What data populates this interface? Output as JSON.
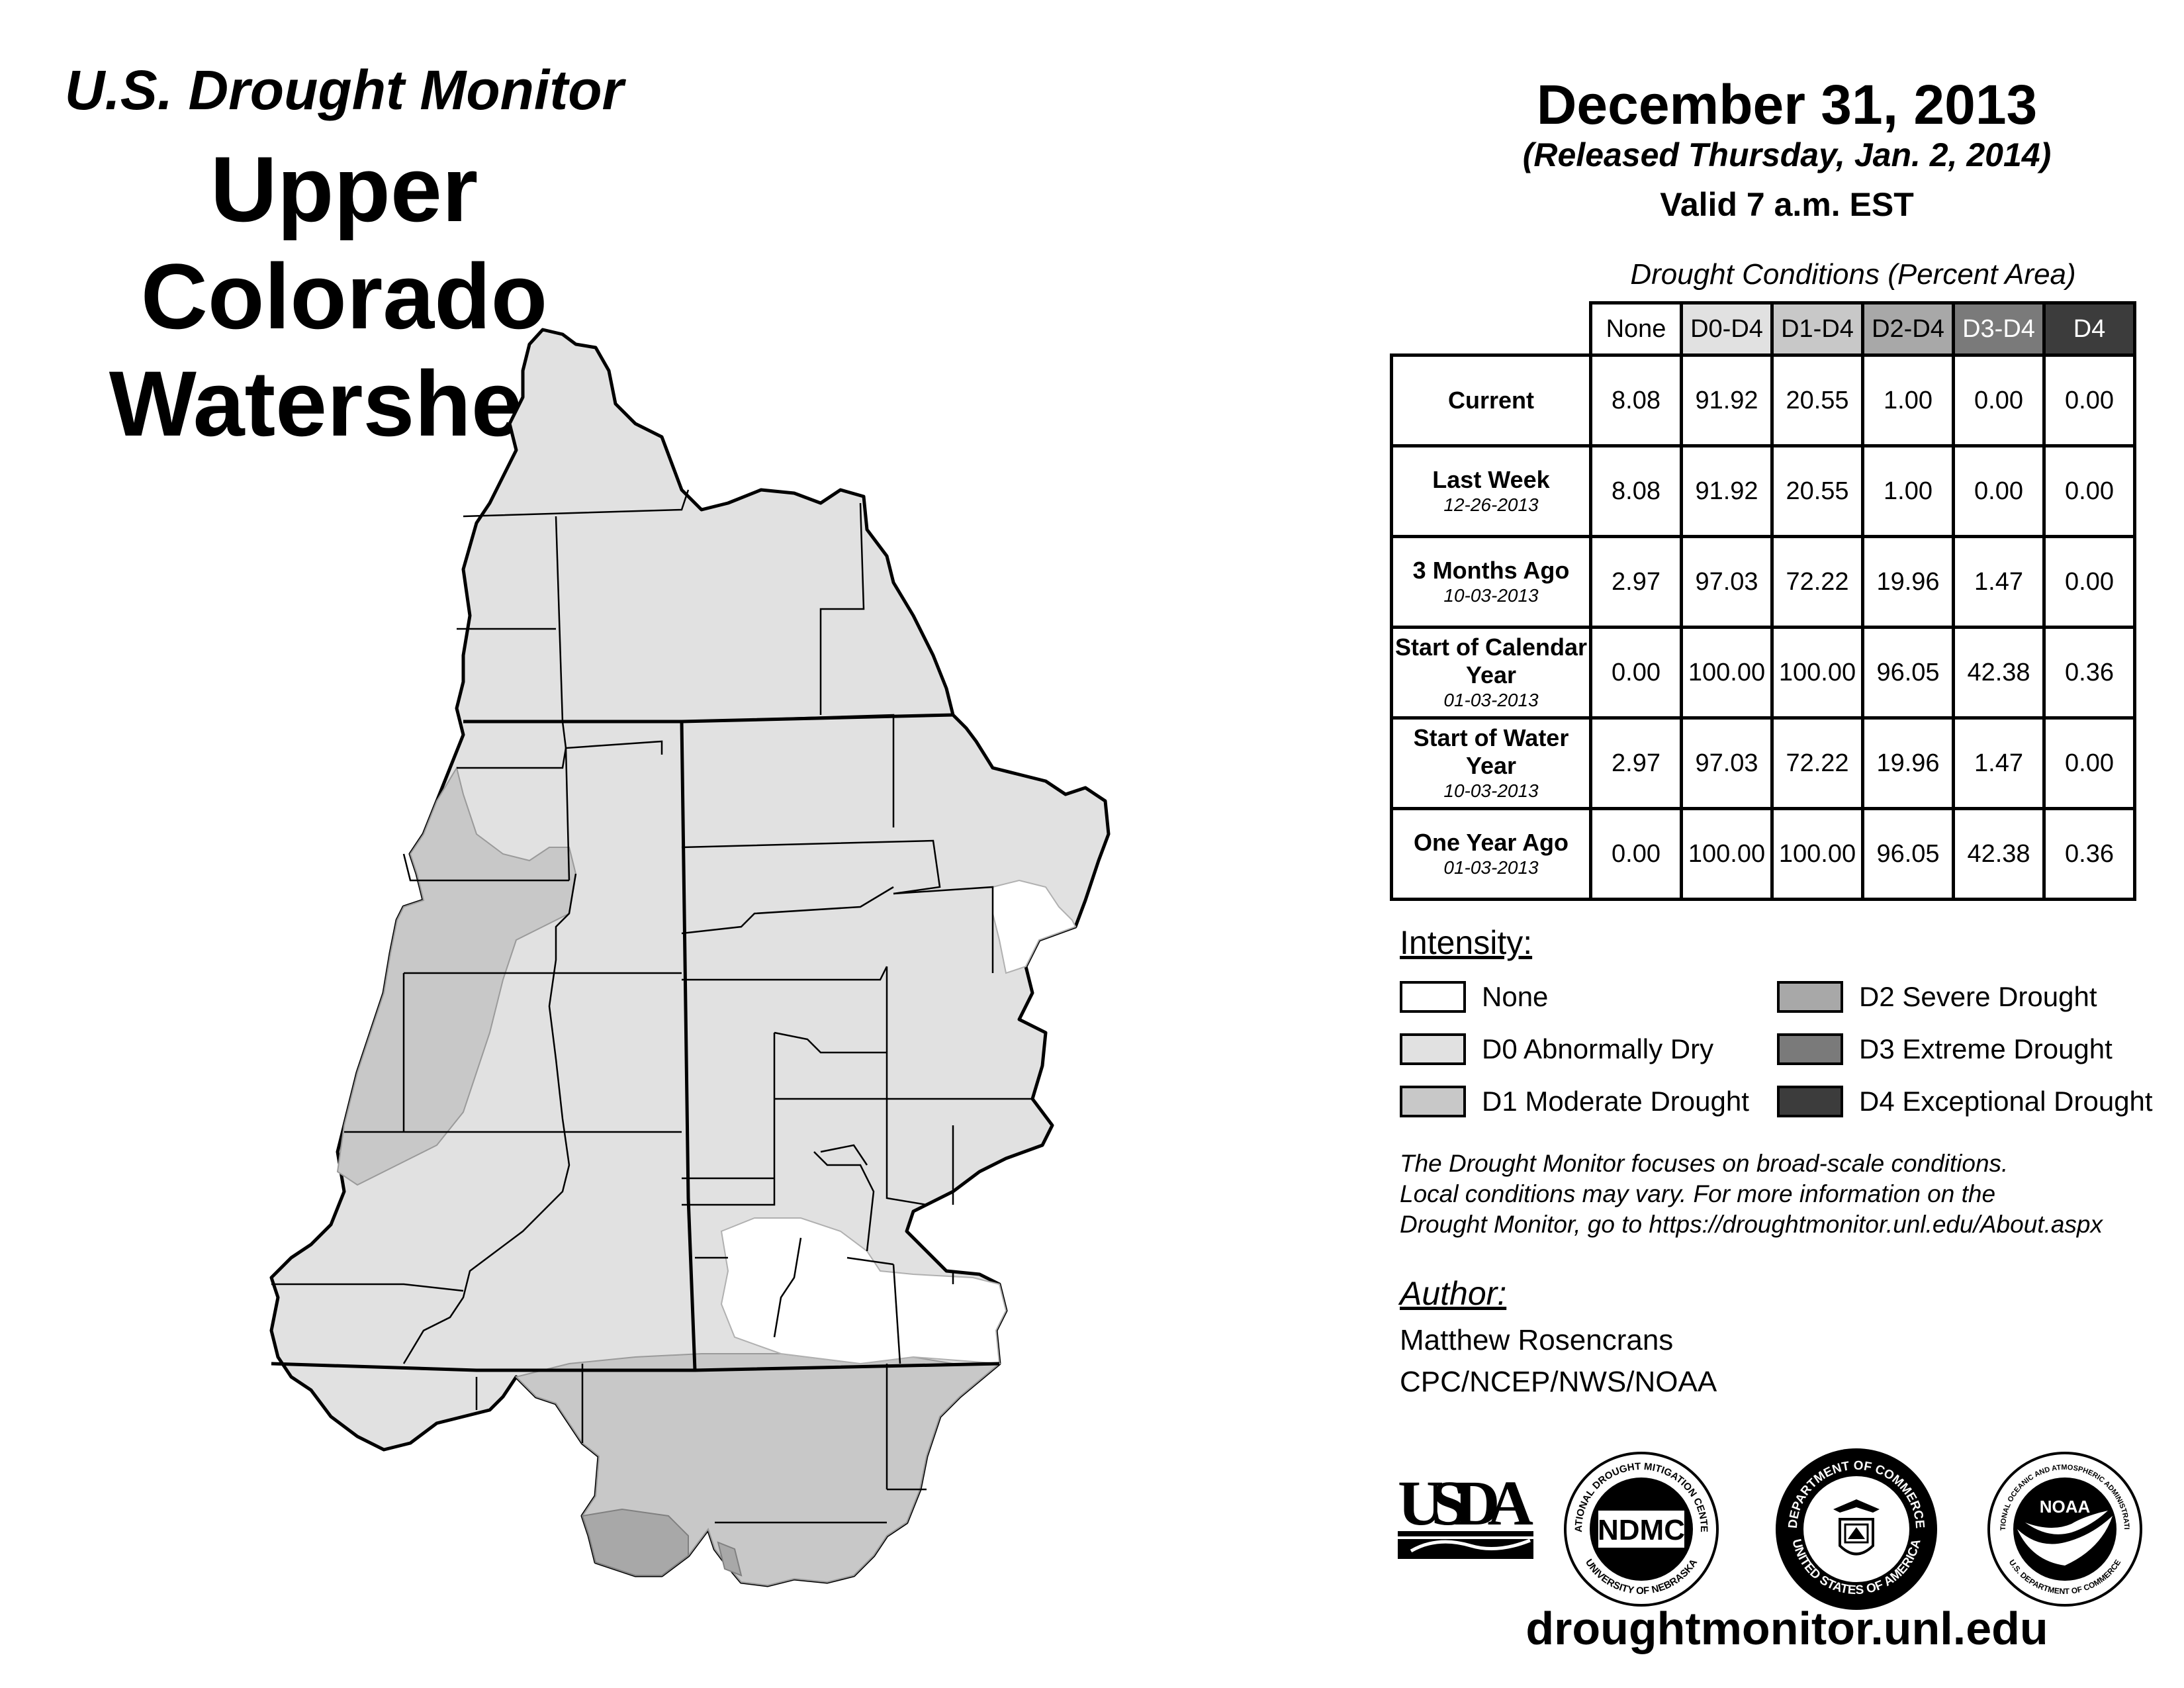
{
  "header": {
    "subtitle": "U.S. Drought Monitor",
    "title": "Upper Colorado Watershed",
    "date": "December 31, 2013",
    "released": "(Released Thursday, Jan. 2, 2014)",
    "valid": "Valid 7 a.m. EST"
  },
  "table": {
    "caption": "Drought Conditions (Percent Area)",
    "columns": [
      "None",
      "D0-D4",
      "D1-D4",
      "D2-D4",
      "D3-D4",
      "D4"
    ],
    "rows": [
      {
        "label": "Current",
        "date": "",
        "values": [
          "8.08",
          "91.92",
          "20.55",
          "1.00",
          "0.00",
          "0.00"
        ]
      },
      {
        "label": "Last Week",
        "date": "12-26-2013",
        "values": [
          "8.08",
          "91.92",
          "20.55",
          "1.00",
          "0.00",
          "0.00"
        ]
      },
      {
        "label": "3 Months Ago",
        "date": "10-03-2013",
        "values": [
          "2.97",
          "97.03",
          "72.22",
          "19.96",
          "1.47",
          "0.00"
        ]
      },
      {
        "label": "Start of Calendar Year",
        "date": "01-03-2013",
        "values": [
          "0.00",
          "100.00",
          "100.00",
          "96.05",
          "42.38",
          "0.36"
        ]
      },
      {
        "label": "Start of Water Year",
        "date": "10-03-2013",
        "values": [
          "2.97",
          "97.03",
          "72.22",
          "19.96",
          "1.47",
          "0.00"
        ]
      },
      {
        "label": "One Year Ago",
        "date": "01-03-2013",
        "values": [
          "0.00",
          "100.00",
          "100.00",
          "96.05",
          "42.38",
          "0.36"
        ]
      }
    ]
  },
  "legend": {
    "title": "Intensity:",
    "items": [
      {
        "label": "None",
        "color": "#ffffff"
      },
      {
        "label": "D0 Abnormally Dry",
        "color": "#e1e1e1"
      },
      {
        "label": "D1 Moderate Drought",
        "color": "#c8c8c8"
      },
      {
        "label": "D2 Severe Drought",
        "color": "#a8a8a8"
      },
      {
        "label": "D3 Extreme Drought",
        "color": "#7a7a7a"
      },
      {
        "label": "D4 Exceptional Drought",
        "color": "#3c3c3c"
      }
    ]
  },
  "note": {
    "line1": "The Drought Monitor focuses on broad-scale conditions.",
    "line2": "Local conditions may vary. For more information on the",
    "line3": "Drought Monitor, go to https://droughtmonitor.unl.edu/About.aspx"
  },
  "author": {
    "title": "Author:",
    "name": "Matthew Rosencrans",
    "org": "CPC/NCEP/NWS/NOAA"
  },
  "logos": {
    "usda": "USDA",
    "ndmc": "NDMC",
    "ndmc_ring_top": "NATIONAL DROUGHT MITIGATION CENTER",
    "ndmc_ring_bottom": "UNIVERSITY OF NEBRASKA",
    "doc_ring_top": "DEPARTMENT OF COMMERCE",
    "doc_ring_bottom": "UNITED STATES OF AMERICA",
    "noaa": "NOAA",
    "noaa_ring_top": "NATIONAL OCEANIC AND ATMOSPHERIC ADMINISTRATION",
    "noaa_ring_bottom": "U.S. DEPARTMENT OF COMMERCE"
  },
  "website": "droughtmonitor.unl.edu"
}
